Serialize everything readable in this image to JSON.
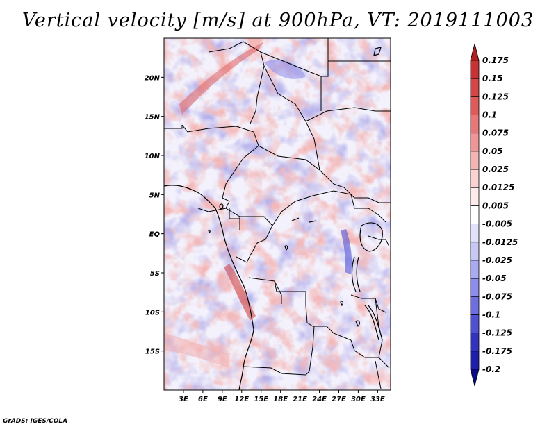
{
  "title": "Vertical velocity [m/s] at 900hPa, VT: 2019111003",
  "credit": "GrADS: IGES/COLA",
  "map": {
    "lon_range": [
      0,
      35
    ],
    "lat_range": [
      -20,
      25
    ],
    "lat_ticks": [
      {
        "label": "20N",
        "value": 20
      },
      {
        "label": "15N",
        "value": 15
      },
      {
        "label": "10N",
        "value": 10
      },
      {
        "label": "5N",
        "value": 5
      },
      {
        "label": "EQ",
        "value": 0
      },
      {
        "label": "5S",
        "value": -5
      },
      {
        "label": "10S",
        "value": -10
      },
      {
        "label": "15S",
        "value": -15
      }
    ],
    "lon_ticks": [
      {
        "label": "3E",
        "value": 3
      },
      {
        "label": "6E",
        "value": 6
      },
      {
        "label": "9E",
        "value": 9
      },
      {
        "label": "12E",
        "value": 12
      },
      {
        "label": "15E",
        "value": 15
      },
      {
        "label": "18E",
        "value": 18
      },
      {
        "label": "21E",
        "value": 21
      },
      {
        "label": "24E",
        "value": 24
      },
      {
        "label": "27E",
        "value": 27
      },
      {
        "label": "30E",
        "value": 30
      },
      {
        "label": "33E",
        "value": 33
      }
    ]
  },
  "colorbar": {
    "levels": [
      "0.175",
      "0.15",
      "0.125",
      "0.1",
      "0.075",
      "0.05",
      "0.025",
      "0.0125",
      "0.005",
      "-0.005",
      "-0.0125",
      "-0.025",
      "-0.05",
      "-0.075",
      "-0.1",
      "-0.125",
      "-0.175",
      "-0.2"
    ],
    "colors": [
      "#b41e1e",
      "#c83232",
      "#d74646",
      "#e15a5a",
      "#e87878",
      "#f09696",
      "#f5b4b4",
      "#fad2d2",
      "#fdebeb",
      "#ffffff",
      "#e1e1fa",
      "#c8c8f5",
      "#aaaaf0",
      "#8c8ceb",
      "#6e6ee1",
      "#5050d2",
      "#3232be",
      "#1e1eaa",
      "#0a0a8c"
    ]
  }
}
